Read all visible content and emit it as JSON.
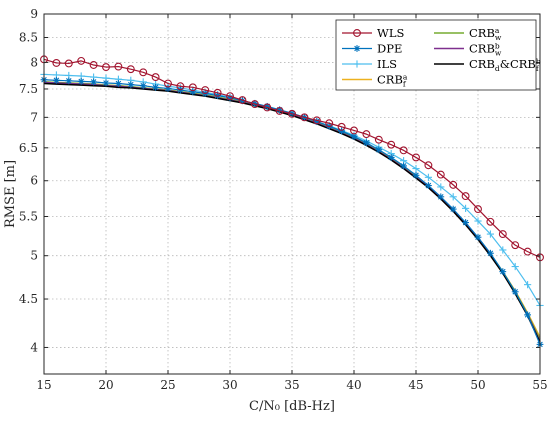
{
  "chart_data": {
    "type": "line",
    "xlabel": "C/N₀ [dB-Hz]",
    "ylabel": "RMSE [m]",
    "xlim": [
      15,
      55
    ],
    "ylim": [
      3.75,
      9
    ],
    "yscale": "log",
    "grid": true,
    "legend_position": "top-right",
    "x_ticks": [
      "15",
      "20",
      "25",
      "30",
      "35",
      "40",
      "45",
      "50",
      "55"
    ],
    "y_ticks": [
      "4",
      "4.5",
      "5",
      "5.5",
      "6",
      "6.5",
      "7",
      "7.5",
      "8",
      "8.5",
      "9"
    ],
    "x": [
      15,
      16,
      17,
      18,
      19,
      20,
      21,
      22,
      23,
      24,
      25,
      26,
      27,
      28,
      29,
      30,
      31,
      32,
      33,
      34,
      35,
      36,
      37,
      38,
      39,
      40,
      41,
      42,
      43,
      44,
      45,
      46,
      47,
      48,
      49,
      50,
      51,
      52,
      53,
      54,
      55
    ],
    "series": [
      {
        "name": "WLS",
        "color": "#a2142f",
        "marker": "circle",
        "values": [
          8.06,
          7.99,
          7.98,
          8.03,
          7.95,
          7.91,
          7.92,
          7.87,
          7.81,
          7.72,
          7.6,
          7.55,
          7.53,
          7.48,
          7.43,
          7.37,
          7.3,
          7.23,
          7.17,
          7.11,
          7.06,
          7.0,
          6.95,
          6.9,
          6.84,
          6.78,
          6.72,
          6.63,
          6.55,
          6.46,
          6.35,
          6.23,
          6.09,
          5.94,
          5.78,
          5.6,
          5.43,
          5.27,
          5.13,
          5.05,
          4.98
        ]
      },
      {
        "name": "DPE",
        "color": "#0072bd",
        "marker": "asterisk",
        "values": [
          7.67,
          7.66,
          7.65,
          7.64,
          7.63,
          7.61,
          7.6,
          7.58,
          7.56,
          7.53,
          7.51,
          7.48,
          7.45,
          7.42,
          7.38,
          7.34,
          7.29,
          7.24,
          7.19,
          7.13,
          7.07,
          7.0,
          6.93,
          6.85,
          6.77,
          6.68,
          6.58,
          6.47,
          6.35,
          6.22,
          6.08,
          5.93,
          5.77,
          5.6,
          5.42,
          5.23,
          5.03,
          4.81,
          4.58,
          4.33,
          4.03
        ]
      },
      {
        "name": "ILS",
        "color": "#4dbeee",
        "marker": "plus",
        "values": [
          7.77,
          7.76,
          7.75,
          7.74,
          7.72,
          7.7,
          7.68,
          7.66,
          7.63,
          7.59,
          7.55,
          7.52,
          7.48,
          7.44,
          7.4,
          7.35,
          7.29,
          7.24,
          7.18,
          7.12,
          7.06,
          7.0,
          6.93,
          6.86,
          6.78,
          6.7,
          6.61,
          6.51,
          6.41,
          6.3,
          6.18,
          6.05,
          5.91,
          5.77,
          5.61,
          5.44,
          5.27,
          5.07,
          4.87,
          4.66,
          4.43
        ]
      },
      {
        "name": "CRB_f^a",
        "label_base": "CRB",
        "label_sub": "f",
        "label_sup": "a",
        "color": "#edb120",
        "marker": "none",
        "values": [
          7.63,
          7.62,
          7.61,
          7.6,
          7.59,
          7.57,
          7.56,
          7.54,
          7.52,
          7.5,
          7.48,
          7.45,
          7.42,
          7.39,
          7.35,
          7.31,
          7.27,
          7.22,
          7.17,
          7.11,
          7.05,
          6.98,
          6.91,
          6.83,
          6.75,
          6.66,
          6.56,
          6.45,
          6.33,
          6.2,
          6.06,
          5.92,
          5.76,
          5.59,
          5.41,
          5.22,
          5.02,
          4.81,
          4.59,
          4.35,
          4.1
        ]
      },
      {
        "name": "CRB_w^a",
        "label_base": "CRB",
        "label_sub": "w",
        "label_sup": "a",
        "color": "#77ac30",
        "marker": "none",
        "values": [
          7.63,
          7.62,
          7.61,
          7.6,
          7.59,
          7.57,
          7.56,
          7.54,
          7.52,
          7.5,
          7.48,
          7.45,
          7.42,
          7.39,
          7.35,
          7.31,
          7.27,
          7.22,
          7.17,
          7.11,
          7.05,
          6.98,
          6.91,
          6.83,
          6.75,
          6.66,
          6.56,
          6.45,
          6.33,
          6.2,
          6.06,
          5.92,
          5.76,
          5.59,
          5.41,
          5.22,
          5.02,
          4.81,
          4.58,
          4.34,
          4.08
        ]
      },
      {
        "name": "CRB_w^b",
        "label_base": "CRB",
        "label_sub": "w",
        "label_sup": "b",
        "color": "#7e2f8e",
        "marker": "none",
        "values": [
          7.62,
          7.61,
          7.6,
          7.59,
          7.58,
          7.56,
          7.55,
          7.53,
          7.51,
          7.49,
          7.47,
          7.44,
          7.41,
          7.38,
          7.34,
          7.3,
          7.26,
          7.21,
          7.16,
          7.1,
          7.04,
          6.97,
          6.9,
          6.82,
          6.74,
          6.65,
          6.55,
          6.44,
          6.32,
          6.19,
          6.05,
          5.91,
          5.75,
          5.58,
          5.4,
          5.21,
          5.01,
          4.8,
          4.57,
          4.33,
          4.06
        ]
      },
      {
        "name": "CRB_d&CRB_f^b",
        "label_base": "CRB",
        "label_sub": "d",
        "label_mid": "&CRB",
        "label_sub2": "f",
        "label_sup2": "b",
        "color": "#000000",
        "marker": "none",
        "values": [
          7.6,
          7.59,
          7.58,
          7.57,
          7.56,
          7.55,
          7.53,
          7.52,
          7.5,
          7.48,
          7.46,
          7.43,
          7.4,
          7.37,
          7.33,
          7.29,
          7.25,
          7.2,
          7.15,
          7.09,
          7.03,
          6.96,
          6.89,
          6.81,
          6.73,
          6.64,
          6.54,
          6.43,
          6.31,
          6.18,
          6.04,
          5.9,
          5.74,
          5.57,
          5.39,
          5.2,
          5.0,
          4.79,
          4.56,
          4.32,
          4.05
        ]
      }
    ]
  }
}
